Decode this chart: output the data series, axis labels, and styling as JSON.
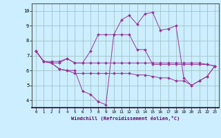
{
  "xlabel": "Windchill (Refroidissement éolien,°C)",
  "background_color": "#cceeff",
  "line_color": "#993399",
  "xlim": [
    -0.5,
    23.5
  ],
  "ylim": [
    3.5,
    10.5
  ],
  "xticks": [
    0,
    1,
    2,
    3,
    4,
    5,
    6,
    7,
    8,
    9,
    10,
    11,
    12,
    13,
    14,
    15,
    16,
    17,
    18,
    19,
    20,
    21,
    22,
    23
  ],
  "yticks": [
    4,
    5,
    6,
    7,
    8,
    9,
    10
  ],
  "grid_color": "#99bbbb",
  "series": [
    [
      7.3,
      6.6,
      6.6,
      6.6,
      6.8,
      6.5,
      6.5,
      6.5,
      6.5,
      6.5,
      6.5,
      6.5,
      6.5,
      6.5,
      6.5,
      6.5,
      6.5,
      6.5,
      6.5,
      6.5,
      6.5,
      6.5,
      6.4,
      6.3
    ],
    [
      7.3,
      6.6,
      6.5,
      6.1,
      6.0,
      6.0,
      4.6,
      4.4,
      3.9,
      3.7,
      8.4,
      9.4,
      9.7,
      9.1,
      9.8,
      9.9,
      8.7,
      8.8,
      9.0,
      5.5,
      5.0,
      5.3,
      5.6,
      6.3
    ],
    [
      7.3,
      6.6,
      6.5,
      6.1,
      6.0,
      5.8,
      5.8,
      5.8,
      5.8,
      5.8,
      5.8,
      5.8,
      5.8,
      5.7,
      5.7,
      5.6,
      5.5,
      5.5,
      5.3,
      5.3,
      5.0,
      5.3,
      5.6,
      6.3
    ],
    [
      7.3,
      6.6,
      6.5,
      6.5,
      6.8,
      6.5,
      6.5,
      7.3,
      8.4,
      8.4,
      8.4,
      8.4,
      8.4,
      7.4,
      7.4,
      6.4,
      6.4,
      6.4,
      6.4,
      6.4,
      6.4,
      6.4,
      6.4,
      6.3
    ]
  ]
}
